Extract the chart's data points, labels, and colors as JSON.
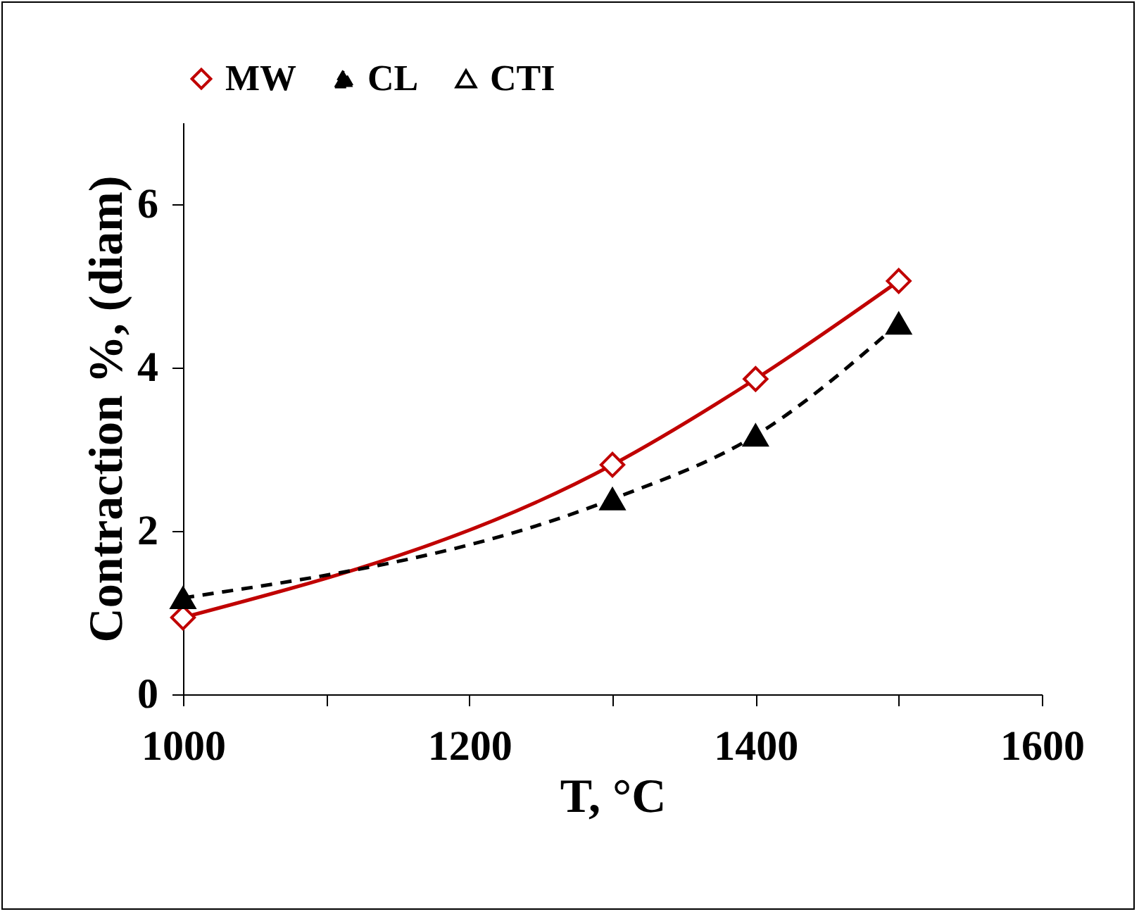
{
  "chart_data": {
    "type": "line",
    "xlabel": "T, °C",
    "ylabel": "Contraction %, (diam)",
    "x": [
      1000,
      1300,
      1400,
      1500
    ],
    "xlim": [
      1000,
      1600
    ],
    "xticks": [
      1000,
      {
        "value": 1100,
        "label": null
      },
      1200,
      {
        "value": 1300,
        "label": null
      },
      1400,
      {
        "value": 1500,
        "label": null
      },
      1600
    ],
    "ylim": [
      0,
      7
    ],
    "yticks": [
      0,
      2,
      4,
      6
    ],
    "grid": false,
    "legend": "top",
    "series": [
      {
        "name": "MW",
        "color": "#c00000",
        "values": [
          0.94,
          2.81,
          3.86,
          5.06
        ],
        "marker": "diamond",
        "line_style": "solid"
      },
      {
        "name": "CL",
        "color": "#000000",
        "values": [
          1.18,
          2.39,
          3.17,
          4.54
        ],
        "marker": "triangle",
        "line_style": "dashed"
      },
      {
        "name": "CTI",
        "type": "scatter",
        "color": "#000000",
        "values": [
          null,
          null,
          null,
          null
        ],
        "marker": "triangle"
      }
    ]
  }
}
